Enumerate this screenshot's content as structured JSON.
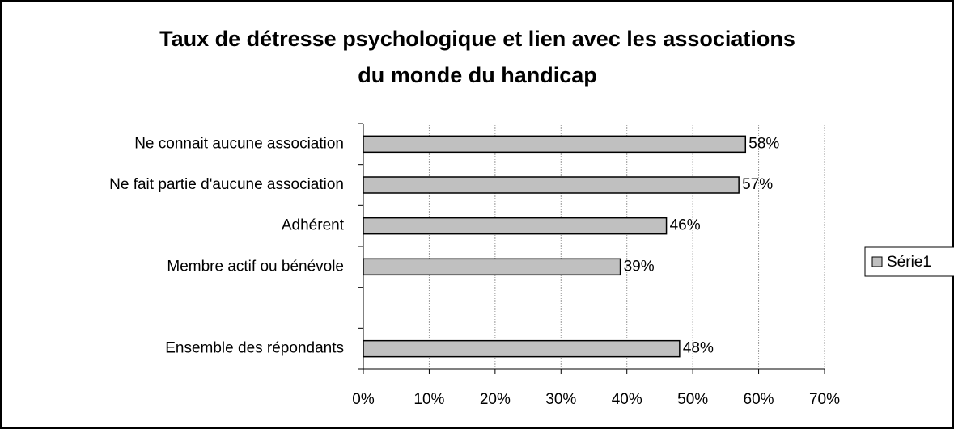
{
  "chart_data": {
    "type": "bar",
    "orientation": "horizontal",
    "title": [
      "Taux de détresse psychologique et lien avec les associations",
      "du monde du handicap"
    ],
    "categories": [
      "Ne connait aucune association",
      "Ne fait partie d'aucune association",
      "Adhérent",
      "Membre actif ou bénévole",
      null,
      "Ensemble des répondants"
    ],
    "series": [
      {
        "name": "Série1",
        "color": "#c0c0c0",
        "values": [
          58,
          57,
          46,
          39,
          null,
          48
        ],
        "value_labels": [
          "58%",
          "57%",
          "46%",
          "39%",
          null,
          "48%"
        ]
      }
    ],
    "xlim": [
      0,
      70
    ],
    "xticks": [
      {
        "value": 0,
        "label": "0%"
      },
      {
        "value": 10,
        "label": "10%"
      },
      {
        "value": 20,
        "label": "20%"
      },
      {
        "value": 30,
        "label": "30%"
      },
      {
        "value": 40,
        "label": "40%"
      },
      {
        "value": 50,
        "label": "50%"
      },
      {
        "value": 60,
        "label": "60%"
      },
      {
        "value": 70,
        "label": "70%"
      }
    ],
    "grid": true,
    "legend": "right"
  }
}
